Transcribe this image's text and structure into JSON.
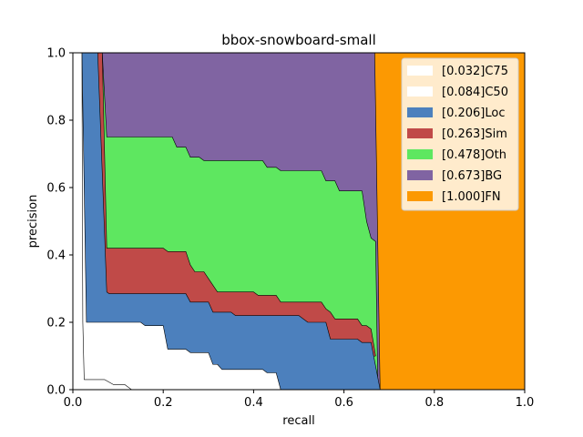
{
  "chart_data": {
    "type": "area",
    "title": "bbox-snowboard-small",
    "xlabel": "recall",
    "ylabel": "precision",
    "xlim": [
      0,
      1
    ],
    "ylim": [
      0,
      1
    ],
    "xticks": [
      "0.0",
      "0.2",
      "0.4",
      "0.6",
      "0.8",
      "1.0"
    ],
    "yticks": [
      "0.0",
      "0.2",
      "0.4",
      "0.6",
      "0.8",
      "1.0"
    ],
    "legend_position": "top-right",
    "series": [
      {
        "name": "[0.032]C75",
        "color": "#ffffff",
        "points": [
          [
            0.0,
            1.0
          ],
          [
            0.02,
            1.0
          ],
          [
            0.022,
            0.2
          ],
          [
            0.025,
            0.03
          ],
          [
            0.07,
            0.03
          ],
          [
            0.09,
            0.015
          ],
          [
            0.115,
            0.015
          ],
          [
            0.13,
            0.0
          ]
        ]
      },
      {
        "name": "[0.084]C50",
        "color": "#ffffff",
        "points": [
          [
            0.0,
            1.0
          ],
          [
            0.02,
            1.0
          ],
          [
            0.03,
            0.2
          ],
          [
            0.15,
            0.2
          ],
          [
            0.16,
            0.19
          ],
          [
            0.2,
            0.19
          ],
          [
            0.21,
            0.12
          ],
          [
            0.25,
            0.12
          ],
          [
            0.26,
            0.11
          ],
          [
            0.3,
            0.11
          ],
          [
            0.31,
            0.075
          ],
          [
            0.32,
            0.075
          ],
          [
            0.33,
            0.06
          ],
          [
            0.42,
            0.06
          ],
          [
            0.43,
            0.05
          ],
          [
            0.45,
            0.05
          ],
          [
            0.46,
            0.0
          ]
        ]
      },
      {
        "name": "[0.206]Loc",
        "color": "#4c80bd",
        "points": [
          [
            0.0,
            1.0
          ],
          [
            0.055,
            1.0
          ],
          [
            0.075,
            0.29
          ],
          [
            0.08,
            0.285
          ],
          [
            0.25,
            0.285
          ],
          [
            0.26,
            0.26
          ],
          [
            0.3,
            0.26
          ],
          [
            0.31,
            0.23
          ],
          [
            0.35,
            0.23
          ],
          [
            0.36,
            0.22
          ],
          [
            0.5,
            0.22
          ],
          [
            0.52,
            0.2
          ],
          [
            0.56,
            0.2
          ],
          [
            0.57,
            0.15
          ],
          [
            0.63,
            0.15
          ],
          [
            0.64,
            0.14
          ],
          [
            0.66,
            0.14
          ],
          [
            0.68,
            0.0
          ]
        ]
      },
      {
        "name": "[0.263]Sim",
        "color": "#c04a48",
        "points": [
          [
            0.0,
            1.0
          ],
          [
            0.065,
            1.0
          ],
          [
            0.075,
            0.42
          ],
          [
            0.2,
            0.42
          ],
          [
            0.21,
            0.41
          ],
          [
            0.25,
            0.41
          ],
          [
            0.26,
            0.37
          ],
          [
            0.27,
            0.35
          ],
          [
            0.29,
            0.35
          ],
          [
            0.3,
            0.33
          ],
          [
            0.31,
            0.31
          ],
          [
            0.32,
            0.29
          ],
          [
            0.4,
            0.29
          ],
          [
            0.41,
            0.28
          ],
          [
            0.45,
            0.28
          ],
          [
            0.46,
            0.26
          ],
          [
            0.55,
            0.26
          ],
          [
            0.56,
            0.24
          ],
          [
            0.57,
            0.23
          ],
          [
            0.58,
            0.21
          ],
          [
            0.63,
            0.21
          ],
          [
            0.64,
            0.19
          ],
          [
            0.65,
            0.19
          ],
          [
            0.66,
            0.18
          ],
          [
            0.67,
            0.1
          ]
        ]
      },
      {
        "name": "[0.478]Oth",
        "color": "#5ee760",
        "points": [
          [
            0.0,
            1.0
          ],
          [
            0.065,
            1.0
          ],
          [
            0.075,
            0.75
          ],
          [
            0.22,
            0.75
          ],
          [
            0.23,
            0.72
          ],
          [
            0.25,
            0.72
          ],
          [
            0.26,
            0.69
          ],
          [
            0.28,
            0.69
          ],
          [
            0.29,
            0.68
          ],
          [
            0.42,
            0.68
          ],
          [
            0.43,
            0.66
          ],
          [
            0.45,
            0.66
          ],
          [
            0.46,
            0.65
          ],
          [
            0.55,
            0.65
          ],
          [
            0.56,
            0.62
          ],
          [
            0.58,
            0.62
          ],
          [
            0.59,
            0.59
          ],
          [
            0.64,
            0.59
          ],
          [
            0.65,
            0.5
          ],
          [
            0.66,
            0.45
          ],
          [
            0.67,
            0.44
          ],
          [
            0.675,
            0.0
          ]
        ]
      },
      {
        "name": "[0.673]BG",
        "color": "#8064a2",
        "points": [
          [
            0.0,
            1.0
          ],
          [
            0.668,
            1.0
          ],
          [
            0.68,
            0.0
          ]
        ]
      },
      {
        "name": "[1.000]FN",
        "color": "#fc9902",
        "points": [
          [
            0.0,
            1.0
          ],
          [
            1.0,
            1.0
          ],
          [
            1.0,
            0.0
          ]
        ]
      }
    ]
  }
}
